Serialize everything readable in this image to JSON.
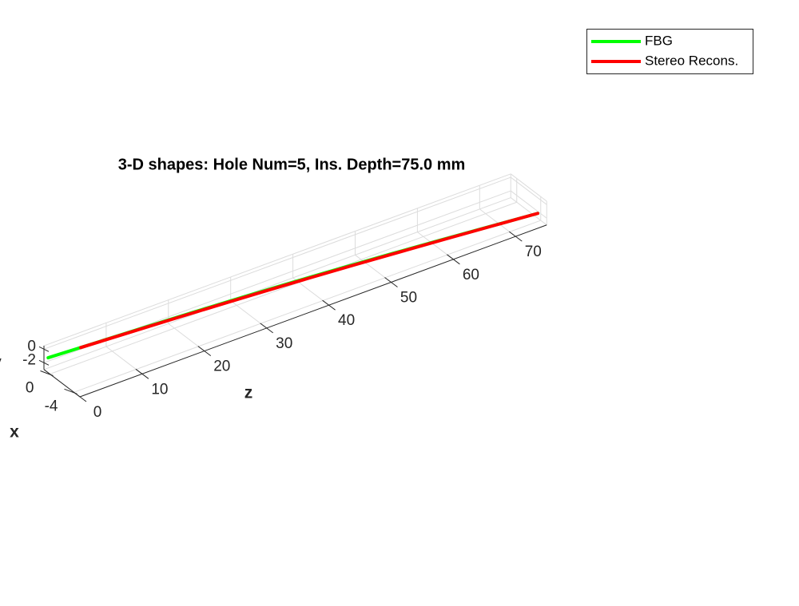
{
  "chart_data": {
    "type": "line3d",
    "title": "3-D shapes: Hole Num=5, Ins. Depth=75.0 mm",
    "xlabel": "x",
    "ylabel": "y",
    "zlabel": "z",
    "xlim": [
      -5,
      1
    ],
    "ylim": [
      -3,
      0.5
    ],
    "zlim": [
      0,
      75
    ],
    "xticks": [
      -4,
      0
    ],
    "yticks": [
      -2,
      0
    ],
    "zticks": [
      0,
      10,
      20,
      30,
      40,
      50,
      60,
      70
    ],
    "grid": true,
    "legend": "upper right",
    "series": [
      {
        "name": "FBG",
        "color": "#00ff00",
        "z": [
          0,
          7.5,
          15,
          22.5,
          30,
          37.5,
          45,
          52.5,
          60,
          67.5,
          75
        ],
        "x": [
          0.3,
          -0.08,
          -0.46,
          -0.84,
          -1.22,
          -1.6,
          -1.98,
          -2.36,
          -2.74,
          -3.12,
          -3.5
        ],
        "y": [
          -0.8,
          -0.8,
          -0.81,
          -0.85,
          -0.92,
          -1.05,
          -1.22,
          -1.45,
          -1.71,
          -2.0,
          -2.3
        ]
      },
      {
        "name": "Stereo Recons.",
        "color": "#ff0000",
        "z": [
          5,
          12,
          19,
          26,
          33,
          40,
          47,
          54,
          61,
          68,
          75
        ],
        "x": [
          0.05,
          -0.31,
          -0.66,
          -1.02,
          -1.37,
          -1.73,
          -2.08,
          -2.44,
          -2.79,
          -3.15,
          -3.5
        ],
        "y": [
          -0.82,
          -0.85,
          -0.9,
          -0.97,
          -1.07,
          -1.2,
          -1.37,
          -1.57,
          -1.8,
          -2.04,
          -2.3
        ]
      }
    ]
  }
}
